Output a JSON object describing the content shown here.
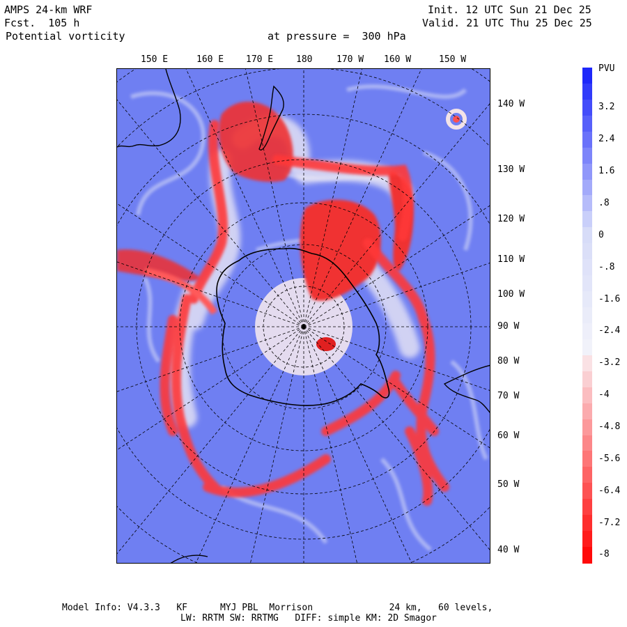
{
  "header": {
    "model": "AMPS 24-km WRF",
    "forecast": "Fcst.  105 h",
    "field": "Potential vorticity",
    "level": "at pressure =  300 hPa",
    "init": "Init. 12 UTC Sun 21 Dec 25",
    "valid": "Valid. 21 UTC Thu 25 Dec 25"
  },
  "map": {
    "lon_labels": [
      "150 E",
      "160 E",
      "170 E",
      "180",
      "170 W",
      "160 W",
      "150 W"
    ],
    "lat_labels": [
      "140 W",
      "130 W",
      "120 W",
      "110 W",
      "100 W",
      "90 W",
      "80 W",
      "70 W",
      "60 W",
      "50 W",
      "40 W"
    ],
    "background_color": "#6f7ff2",
    "positive_color": "#2020ff",
    "negative_color": "#ff1010"
  },
  "colorbar": {
    "unit": "PVU",
    "labels": [
      "3.2",
      "2.4",
      "1.6",
      ".8",
      "0",
      "-.8",
      "-1.6",
      "-2.4",
      "-3.2",
      "-4",
      "-4.8",
      "-5.6",
      "-6.4",
      "-7.2",
      "-8"
    ],
    "levels": [
      4.0,
      3.6,
      3.2,
      2.8,
      2.4,
      2.0,
      1.6,
      1.2,
      0.8,
      0.4,
      0.0,
      -0.4,
      -0.8,
      -1.2,
      -1.6,
      -2.0,
      -2.4,
      -2.8,
      -3.2,
      -3.6,
      -4.0,
      -4.4,
      -4.8,
      -5.2,
      -5.6,
      -6.0,
      -6.4,
      -6.8,
      -7.2,
      -7.6,
      -8.0
    ]
  },
  "footer": {
    "line1": "Model Info: V4.3.3   KF      MYJ PBL  Morrison              24 km,   60 levels,",
    "line2": "LW: RRTM SW: RRTMG   DIFF: simple KM: 2D Smagor"
  }
}
